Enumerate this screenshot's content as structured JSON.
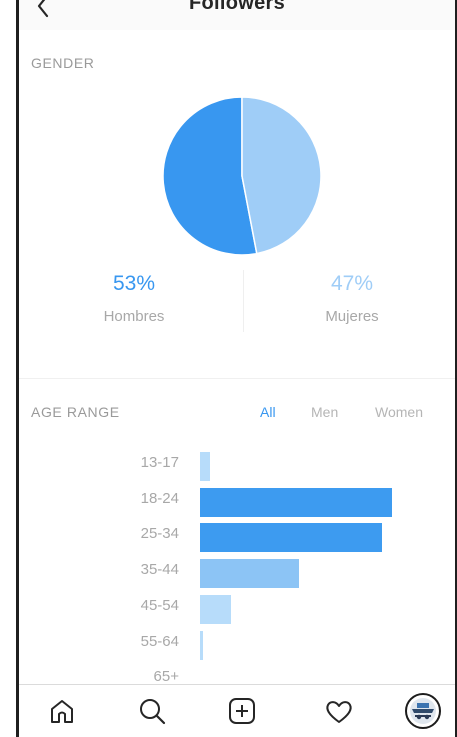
{
  "header": {
    "title": "Followers",
    "back_icon": "chevron-left-icon"
  },
  "gender": {
    "label": "GENDER",
    "chart_data": {
      "type": "pie",
      "categories": [
        "Hombres",
        "Mujeres"
      ],
      "values": [
        53,
        47
      ],
      "colors": [
        "#3897f0",
        "#9fcdf7"
      ]
    },
    "left": {
      "value": "53%",
      "label": "Hombres"
    },
    "right": {
      "value": "47%",
      "label": "Mujeres"
    }
  },
  "age": {
    "label": "AGE RANGE",
    "tabs": {
      "all": "All",
      "men": "Men",
      "women": "Women",
      "selected": "All"
    },
    "chart_data": {
      "type": "bar",
      "orientation": "horizontal",
      "categories": [
        "13-17",
        "18-24",
        "25-34",
        "35-44",
        "45-54",
        "55-64",
        "65+"
      ],
      "values": [
        1.5,
        28,
        26.5,
        14.5,
        4.5,
        0.5,
        0
      ]
    }
  },
  "tabbar": {
    "icons": [
      "home-icon",
      "search-icon",
      "add-post-icon",
      "heart-icon",
      "profile-avatar-icon"
    ]
  },
  "colors": {
    "accent": "#3897f0",
    "accent_light": "#9fcdf7",
    "bar_dark": "#3d9bf0",
    "bar_mid": "#8cc4f5",
    "bar_light": "#b7dcfa"
  }
}
